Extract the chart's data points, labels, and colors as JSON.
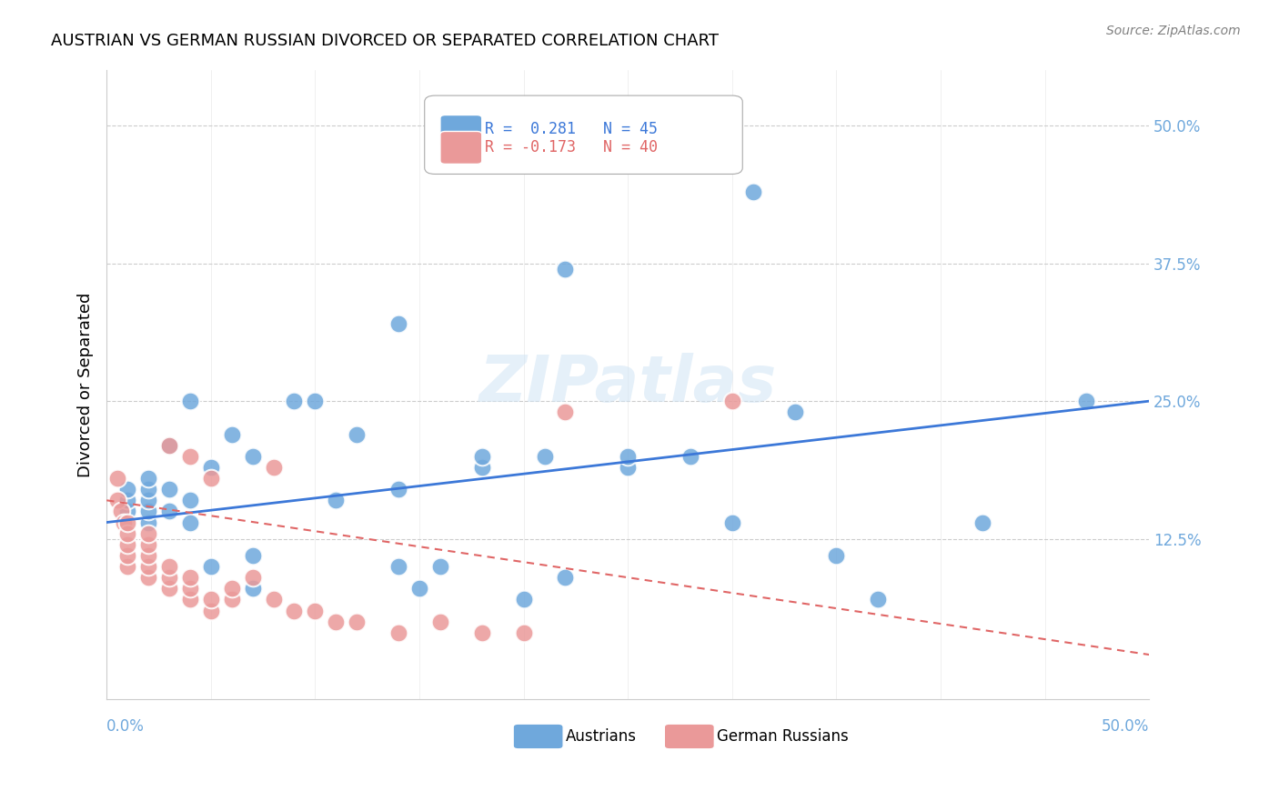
{
  "title": "AUSTRIAN VS GERMAN RUSSIAN DIVORCED OR SEPARATED CORRELATION CHART",
  "source": "Source: ZipAtlas.com",
  "ylabel": "Divorced or Separated",
  "ytick_vals": [
    0.125,
    0.25,
    0.375,
    0.5
  ],
  "ytick_labels": [
    "12.5%",
    "25.0%",
    "37.5%",
    "50.0%"
  ],
  "xlim": [
    0.0,
    0.5
  ],
  "ylim": [
    -0.02,
    0.55
  ],
  "legend_r1": "R =  0.281   N = 45",
  "legend_r2": "R = -0.173   N = 40",
  "blue_color": "#6fa8dc",
  "pink_color": "#ea9999",
  "blue_line_color": "#3c78d8",
  "pink_line_color": "#e06666",
  "watermark": "ZIPatlas",
  "austrians_x": [
    0.01,
    0.01,
    0.01,
    0.02,
    0.02,
    0.02,
    0.02,
    0.02,
    0.03,
    0.03,
    0.03,
    0.04,
    0.04,
    0.04,
    0.05,
    0.05,
    0.06,
    0.07,
    0.07,
    0.07,
    0.09,
    0.1,
    0.11,
    0.12,
    0.14,
    0.14,
    0.14,
    0.15,
    0.16,
    0.18,
    0.18,
    0.2,
    0.21,
    0.22,
    0.22,
    0.25,
    0.25,
    0.28,
    0.3,
    0.31,
    0.33,
    0.35,
    0.37,
    0.42,
    0.47
  ],
  "austrians_y": [
    0.15,
    0.16,
    0.17,
    0.14,
    0.15,
    0.16,
    0.17,
    0.18,
    0.15,
    0.17,
    0.21,
    0.14,
    0.16,
    0.25,
    0.1,
    0.19,
    0.22,
    0.08,
    0.11,
    0.2,
    0.25,
    0.25,
    0.16,
    0.22,
    0.1,
    0.17,
    0.32,
    0.08,
    0.1,
    0.19,
    0.2,
    0.07,
    0.2,
    0.09,
    0.37,
    0.19,
    0.2,
    0.2,
    0.14,
    0.44,
    0.24,
    0.11,
    0.07,
    0.14,
    0.25
  ],
  "german_russians_x": [
    0.005,
    0.005,
    0.007,
    0.008,
    0.01,
    0.01,
    0.01,
    0.01,
    0.01,
    0.02,
    0.02,
    0.02,
    0.02,
    0.02,
    0.03,
    0.03,
    0.03,
    0.03,
    0.04,
    0.04,
    0.04,
    0.04,
    0.05,
    0.05,
    0.05,
    0.06,
    0.06,
    0.07,
    0.08,
    0.08,
    0.09,
    0.1,
    0.11,
    0.12,
    0.14,
    0.16,
    0.18,
    0.2,
    0.22,
    0.3
  ],
  "german_russians_y": [
    0.16,
    0.18,
    0.15,
    0.14,
    0.1,
    0.11,
    0.12,
    0.13,
    0.14,
    0.09,
    0.1,
    0.11,
    0.12,
    0.13,
    0.08,
    0.09,
    0.1,
    0.21,
    0.07,
    0.08,
    0.09,
    0.2,
    0.06,
    0.07,
    0.18,
    0.07,
    0.08,
    0.09,
    0.07,
    0.19,
    0.06,
    0.06,
    0.05,
    0.05,
    0.04,
    0.05,
    0.04,
    0.04,
    0.24,
    0.25
  ],
  "blue_line_x": [
    0.0,
    0.5
  ],
  "blue_line_y": [
    0.14,
    0.25
  ],
  "pink_line_x": [
    0.0,
    0.5
  ],
  "pink_line_y": [
    0.16,
    0.02
  ],
  "background_color": "#ffffff",
  "grid_color": "#cccccc"
}
